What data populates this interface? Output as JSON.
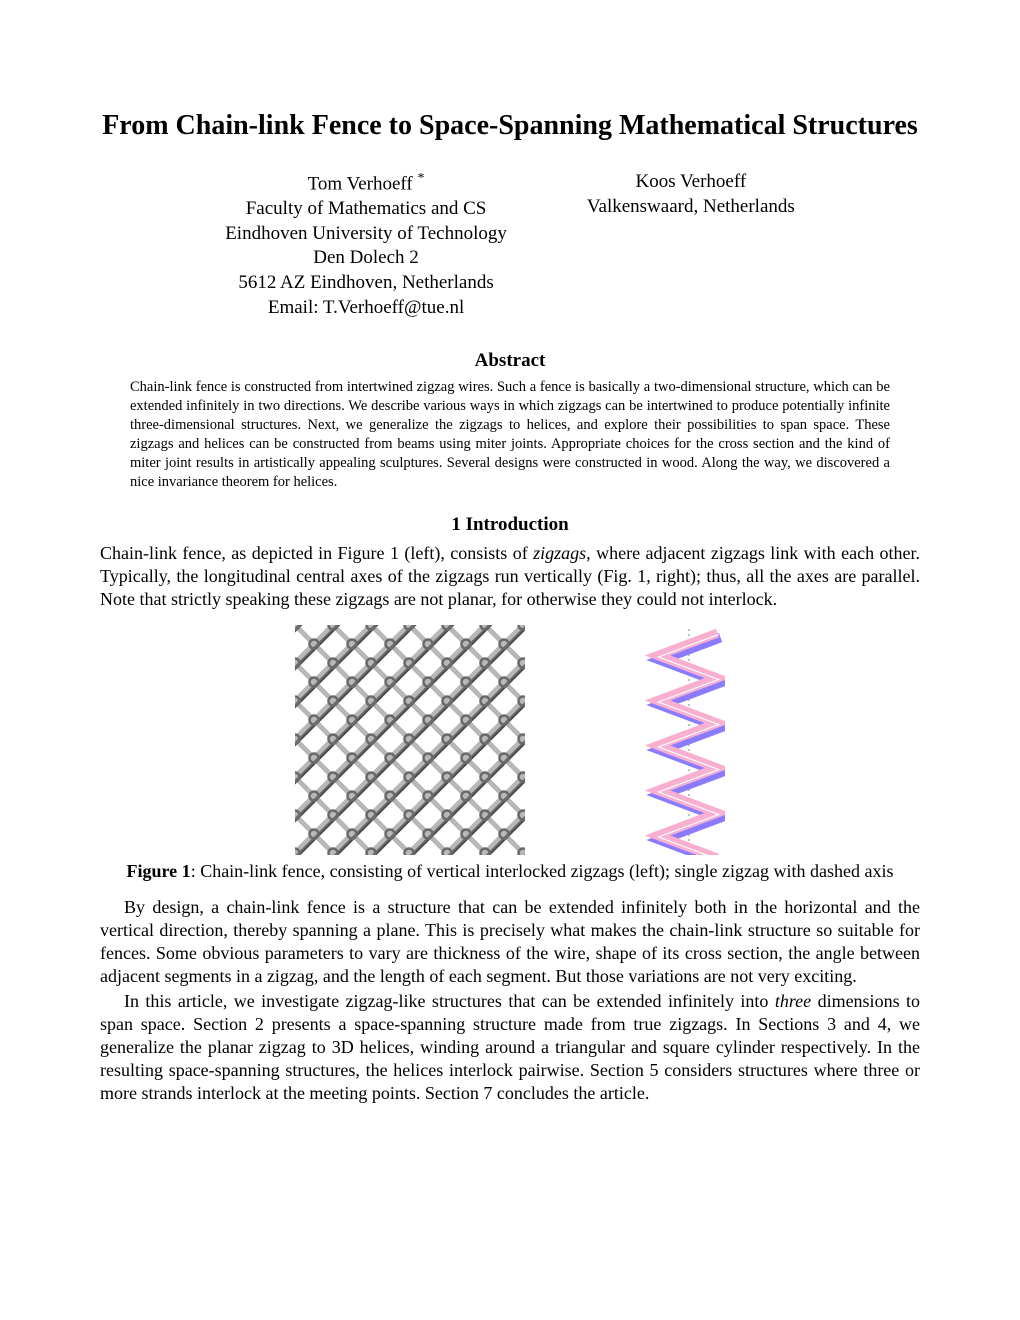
{
  "title": "From Chain-link Fence to Space-Spanning Mathematical Structures",
  "authors": {
    "left": {
      "name": "Tom Verhoeff",
      "asterisk": "*",
      "affil1": "Faculty of Mathematics and CS",
      "affil2": "Eindhoven University of Technology",
      "affil3": "Den Dolech 2",
      "affil4": "5612 AZ Eindhoven, Netherlands",
      "email": "Email: T.Verhoeff@tue.nl"
    },
    "right": {
      "name": "Koos Verhoeff",
      "affil1": "Valkenswaard, Netherlands"
    }
  },
  "abstract": {
    "heading": "Abstract",
    "text": "Chain-link fence is constructed from intertwined zigzag wires. Such a fence is basically a two-dimensional structure, which can be extended infinitely in two directions. We describe various ways in which zigzags can be intertwined to produce potentially infinite three-dimensional structures. Next, we generalize the zigzags to helices, and explore their possibilities to span space. These zigzags and helices can be constructed from beams using miter joints. Appropriate choices for the cross section and the kind of miter joint results in artistically appealing sculptures. Several designs were constructed in wood. Along the way, we discovered a nice invariance theorem for helices."
  },
  "section1": {
    "heading": "1   Introduction",
    "para1_a": "Chain-link fence, as depicted in Figure 1 (left), consists of ",
    "para1_em": "zigzags",
    "para1_b": ", where adjacent zigzags link with each other. Typically, the longitudinal central axes of the zigzags run vertically (Fig. 1, right); thus, all the axes are parallel. Note that strictly speaking these zigzags are not planar, for otherwise they could not interlock.",
    "caption_label": "Figure 1",
    "caption_text": ": Chain-link fence, consisting of vertical interlocked zigzags (left); single zigzag with dashed axis",
    "para2": "By design, a chain-link fence is a structure that can be extended infinitely both in the horizontal and the vertical direction, thereby spanning a plane. This is precisely what makes the chain-link structure so suitable for fences. Some obvious parameters to vary are thickness of the wire, shape of its cross section, the angle between adjacent segments in a zigzag, and the length of each segment. But those variations are not very exciting.",
    "para3_a": "In this article, we investigate zigzag-like structures that can be extended infinitely into ",
    "para3_em": "three",
    "para3_b": " dimensions to span space. Section 2 presents a space-spanning structure made from true zigzags. In Sections 3 and 4, we generalize the planar zigzag to 3D helices, winding around a triangular and square cylinder respectively. In the resulting space-spanning structures, the helices interlock pairwise. Section 5 considers structures where three or more strands interlock at the meeting points. Section 7 concludes the article."
  },
  "figure": {
    "fence": {
      "background": "#ffffff",
      "wire_color": "#6a6a6a",
      "wire_shadow": "#4a4a4a",
      "wire_highlight": "#b8b8b8",
      "wire_width": 4.5,
      "cell": 38,
      "cols": 6,
      "rows": 6
    },
    "zigzag": {
      "axis_color": "#808080",
      "stroke_width": 6,
      "top_color": "#f9b0d0",
      "bottom_color": "#8a7bff",
      "highlight": "#ffffff",
      "width": 60,
      "step": 45,
      "segments": 5
    }
  }
}
